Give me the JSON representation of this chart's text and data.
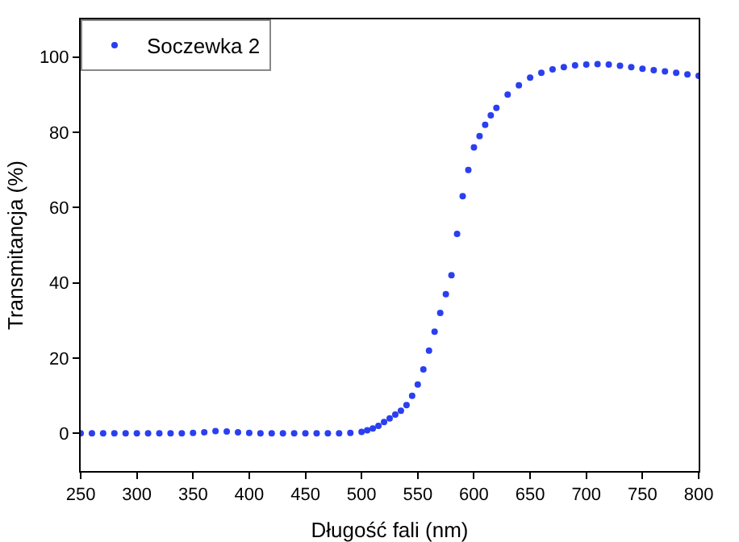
{
  "chart_data": {
    "type": "scatter",
    "xlabel": "Długość fali (nm)",
    "ylabel": "Transmitancja (%)",
    "x": [
      250,
      260,
      270,
      280,
      290,
      300,
      310,
      320,
      330,
      340,
      350,
      360,
      370,
      380,
      390,
      400,
      410,
      420,
      430,
      440,
      450,
      460,
      470,
      480,
      490,
      500,
      505,
      510,
      515,
      520,
      525,
      530,
      535,
      540,
      545,
      550,
      555,
      560,
      565,
      570,
      575,
      580,
      585,
      590,
      595,
      600,
      605,
      610,
      615,
      620,
      630,
      640,
      650,
      660,
      670,
      680,
      690,
      700,
      710,
      720,
      730,
      740,
      750,
      760,
      770,
      780,
      790,
      800
    ],
    "series": [
      {
        "name": "Soczewka 2",
        "color": "#2a3ff0",
        "values": [
          0,
          0,
          0,
          0,
          0,
          0,
          0,
          0,
          0,
          0,
          0.1,
          0.3,
          0.6,
          0.5,
          0.3,
          0.1,
          0,
          0,
          0,
          0,
          0,
          0,
          0,
          0,
          0.1,
          0.4,
          0.8,
          1.3,
          2,
          3,
          4,
          5,
          6,
          7.5,
          10,
          13,
          17,
          22,
          27,
          32,
          37,
          42,
          53,
          63,
          70,
          76,
          79,
          82,
          84.5,
          86.5,
          90,
          92.5,
          94.5,
          95.8,
          96.7,
          97.3,
          97.8,
          98,
          98.1,
          98,
          97.7,
          97.3,
          96.9,
          96.5,
          96.2,
          95.8,
          95.4,
          95
        ]
      }
    ],
    "xlim": [
      250,
      800
    ],
    "xticks": [
      250,
      300,
      350,
      400,
      450,
      500,
      550,
      600,
      650,
      700,
      750,
      800
    ],
    "ylim": [
      -10,
      110
    ],
    "yticks": [
      0,
      20,
      40,
      60,
      80,
      100
    ],
    "grid": false,
    "legend": "top left",
    "marker": "circle"
  }
}
